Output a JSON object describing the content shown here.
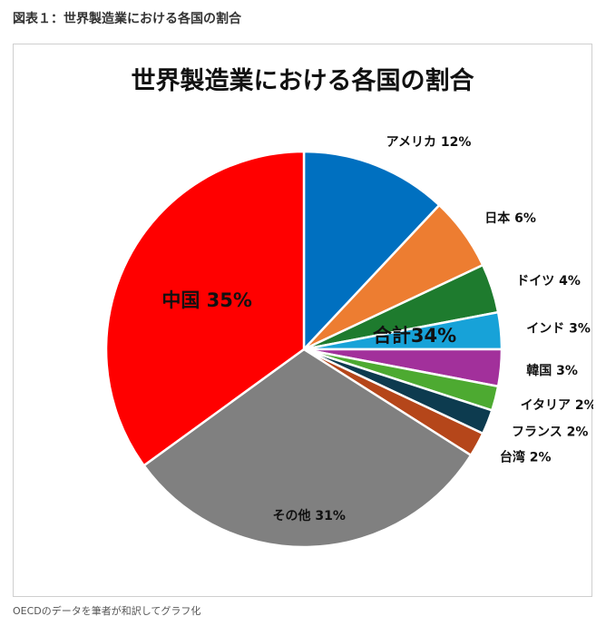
{
  "figure_caption": "図表１：世界製造業における各国の割合",
  "source_note": "OECDのデータを筆者が和訳してグラフ化",
  "chart_data": {
    "type": "pie",
    "title": "世界製造業における各国の割合",
    "slices": [
      {
        "label": "アメリカ 12%",
        "value": 12,
        "color": "#0070C0"
      },
      {
        "label": "日本 6%",
        "value": 6,
        "color": "#ED7D31"
      },
      {
        "label": "ドイツ 4%",
        "value": 4,
        "color": "#1E7B2E"
      },
      {
        "label": "インド 3%",
        "value": 3,
        "color": "#17A2D8"
      },
      {
        "label": "韓国 3%",
        "value": 3,
        "color": "#A2309B"
      },
      {
        "label": "イタリア 2%",
        "value": 2,
        "color": "#4DAA31"
      },
      {
        "label": "フランス 2%",
        "value": 2,
        "color": "#0D3B4F"
      },
      {
        "label": "台湾 2%",
        "value": 2,
        "color": "#B5461A"
      },
      {
        "label": "その他 31%",
        "value": 31,
        "color": "#808080"
      },
      {
        "label": "中国 35%",
        "value": 35,
        "color": "#FF0000"
      }
    ],
    "annotation": "合計34%"
  }
}
